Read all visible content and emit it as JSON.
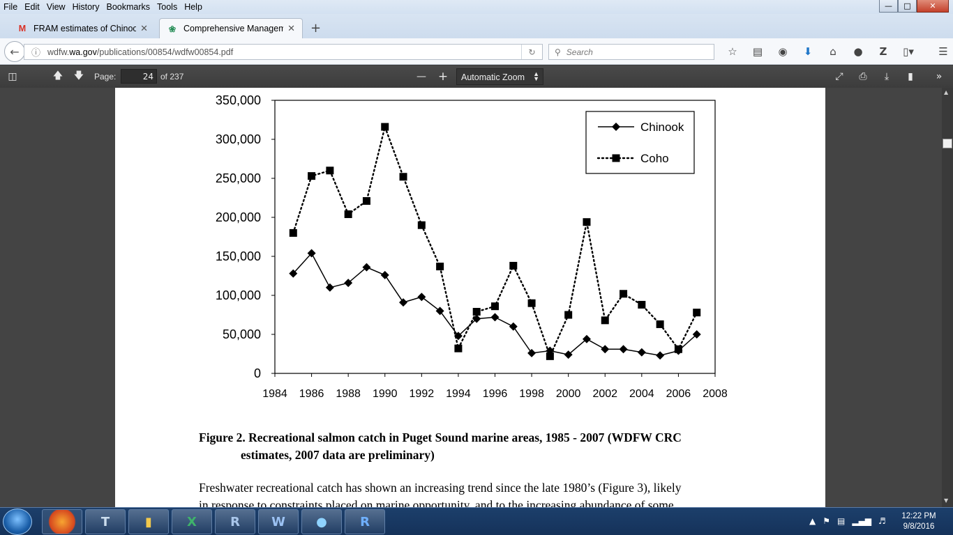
{
  "menu": [
    "File",
    "Edit",
    "View",
    "History",
    "Bookmarks",
    "Tools",
    "Help"
  ],
  "tabs": [
    {
      "label": "FRAM estimates of Chinoo...",
      "icon": "gmail-icon"
    },
    {
      "label": "Comprehensive Managem...",
      "icon": "wdfw-icon"
    }
  ],
  "url": {
    "prefix": "wdfw.",
    "host": "wa.gov",
    "path": "/publications/00854/wdfw00854.pdf"
  },
  "search_placeholder": "Search",
  "pdf": {
    "page_label": "Page:",
    "page": "24",
    "page_total": "of 237",
    "zoom": "Automatic Zoom"
  },
  "chart_data": {
    "type": "line",
    "x": [
      1985,
      1986,
      1987,
      1988,
      1989,
      1990,
      1991,
      1992,
      1993,
      1994,
      1995,
      1996,
      1997,
      1998,
      1999,
      2000,
      2001,
      2002,
      2003,
      2004,
      2005,
      2006,
      2007
    ],
    "series": [
      {
        "name": "Chinook",
        "style": "solid",
        "marker": "diamond",
        "values": [
          128000,
          154000,
          110000,
          116000,
          136000,
          126000,
          91000,
          98000,
          80000,
          48000,
          70000,
          72000,
          60000,
          26000,
          29000,
          24000,
          44000,
          31000,
          31000,
          27000,
          23000,
          29000,
          50000
        ]
      },
      {
        "name": "Coho",
        "style": "dotted",
        "marker": "square",
        "values": [
          180000,
          253000,
          260000,
          204000,
          221000,
          316000,
          252000,
          190000,
          137000,
          32000,
          79000,
          86000,
          138000,
          90000,
          22000,
          75000,
          194000,
          68000,
          102000,
          88000,
          63000,
          31000,
          78000
        ]
      }
    ],
    "xlim": [
      1984,
      2008
    ],
    "ylim": [
      0,
      350000
    ],
    "xticks": [
      "1984",
      "1986",
      "1988",
      "1990",
      "1992",
      "1994",
      "1996",
      "1998",
      "2000",
      "2002",
      "2004",
      "2006",
      "2008"
    ],
    "yticks": [
      "0",
      "50,000",
      "100,000",
      "150,000",
      "200,000",
      "250,000",
      "300,000",
      "350,000"
    ],
    "legend": "top-right",
    "grid": false
  },
  "caption": {
    "line1": "Figure 2.  Recreational salmon catch in Puget Sound marine areas, 1985 - 2007 (WDFW CRC",
    "line2": "estimates, 2007 data are preliminary)"
  },
  "body": {
    "line1": "Freshwater recreational catch has shown an increasing trend since the late 1980’s (Figure 3), likely",
    "line2": "in response to constraints placed on marine opportunity, and to the increasing abundance of some"
  },
  "taskbar": {
    "apps": [
      "firefox-icon",
      "toolbox-icon",
      "folder-icon",
      "excel-icon",
      "r-studio-icon",
      "word-icon",
      "earth-icon",
      "r-icon"
    ]
  },
  "clock": {
    "time": "12:22 PM",
    "date": "9/8/2016"
  }
}
